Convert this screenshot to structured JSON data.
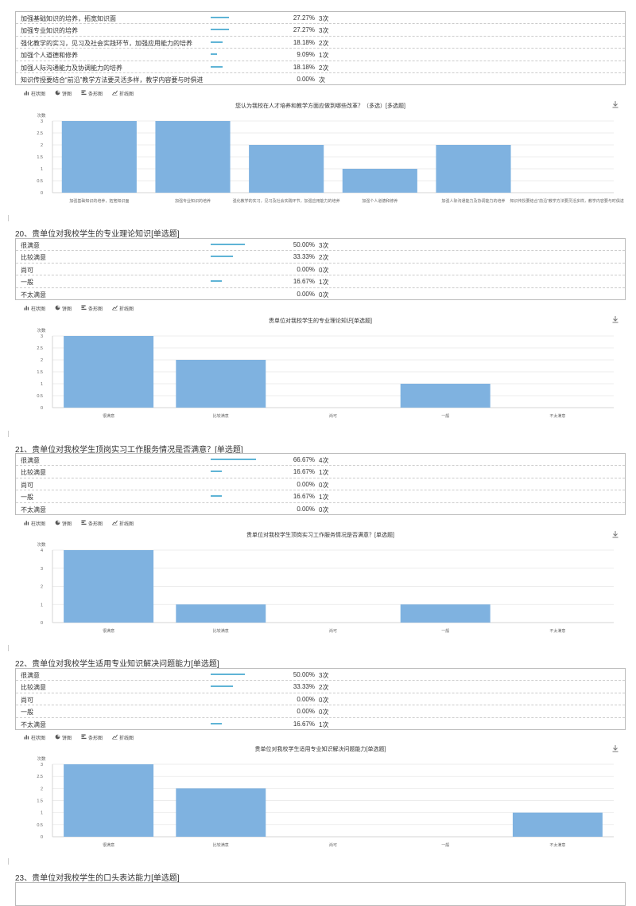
{
  "q19": {
    "rows": [
      {
        "label": "加强基础知识的培养，拓宽知识面",
        "pct": "27.27%",
        "cnt": "3次",
        "frac": 0.2727
      },
      {
        "label": "加强专业知识的培养",
        "pct": "27.27%",
        "cnt": "3次",
        "frac": 0.2727
      },
      {
        "label": "强化教学的实习，见习及社会实践环节，加强应用能力的培养",
        "pct": "18.18%",
        "cnt": "2次",
        "frac": 0.1818
      },
      {
        "label": "加强个人道德和修养",
        "pct": "9.09%",
        "cnt": "1次",
        "frac": 0.0909
      },
      {
        "label": "加强人际沟通能力及协调能力的培养",
        "pct": "18.18%",
        "cnt": "2次",
        "frac": 0.1818
      },
      {
        "label": "知识传授要结合“前沿”教学方法要灵活多样，教学内容要与时俱进",
        "pct": "0.00%",
        "cnt": "次",
        "frac": 0
      }
    ],
    "tabs": [
      "柱状图",
      "饼图",
      "条形图",
      "折线图"
    ],
    "chart": {
      "type": "bar",
      "title": "您认为我校在人才培养和教学方面应做到哪些改革？（多选）[多选题]",
      "ylabel": "次数",
      "categories": [
        "加强基础知识的培养，拓宽知识面",
        "加强专业知识的培养",
        "强化教学的实习，见习及社会实践环节，加强应用能力的培养",
        "加强个人道德和修养",
        "加强人际沟通能力及协调能力的培养",
        "知识传授要结合“前沿”教学方法要灵活多样，教学内容要与时俱进"
      ],
      "values": [
        3,
        3,
        2,
        1,
        2,
        0
      ],
      "yticks": [
        "0",
        "0.5",
        "1",
        "1.5",
        "2",
        "2.5",
        "3"
      ],
      "ymax": 3
    }
  },
  "q20": {
    "title": "20、贵单位对我校学生的专业理论知识[单选题]",
    "rows": [
      {
        "label": "很满意",
        "pct": "50.00%",
        "cnt": "3次",
        "frac": 0.5
      },
      {
        "label": "比较满意",
        "pct": "33.33%",
        "cnt": "2次",
        "frac": 0.3333
      },
      {
        "label": "尚可",
        "pct": "0.00%",
        "cnt": "0次",
        "frac": 0
      },
      {
        "label": "一般",
        "pct": "16.67%",
        "cnt": "1次",
        "frac": 0.1667
      },
      {
        "label": "不太满意",
        "pct": "0.00%",
        "cnt": "0次",
        "frac": 0
      }
    ],
    "tabs": [
      "柱状图",
      "饼图",
      "条形图",
      "折线图"
    ],
    "chart": {
      "type": "bar",
      "title": "贵单位对我校学生的专业理论知识[单选题]",
      "ylabel": "次数",
      "categories": [
        "很满意",
        "比较满意",
        "尚可",
        "一般",
        "不太满意"
      ],
      "values": [
        3,
        2,
        0,
        1,
        0
      ],
      "yticks": [
        "0",
        "0.5",
        "1",
        "1.5",
        "2",
        "2.5",
        "3"
      ],
      "ymax": 3
    }
  },
  "q21": {
    "title": "21、贵单位对我校学生顶岗实习工作服务情况是否满意？[单选题]",
    "rows": [
      {
        "label": "很满意",
        "pct": "66.67%",
        "cnt": "4次",
        "frac": 0.6667
      },
      {
        "label": "比较满意",
        "pct": "16.67%",
        "cnt": "1次",
        "frac": 0.1667
      },
      {
        "label": "尚可",
        "pct": "0.00%",
        "cnt": "0次",
        "frac": 0
      },
      {
        "label": "一般",
        "pct": "16.67%",
        "cnt": "1次",
        "frac": 0.1667
      },
      {
        "label": "不太满意",
        "pct": "0.00%",
        "cnt": "0次",
        "frac": 0
      }
    ],
    "tabs": [
      "柱状图",
      "饼图",
      "条形图",
      "折线图"
    ],
    "chart": {
      "type": "bar",
      "title": "贵单位对我校学生顶岗实习工作服务情况是否满意？[单选题]",
      "ylabel": "次数",
      "categories": [
        "很满意",
        "比较满意",
        "尚可",
        "一般",
        "不太满意"
      ],
      "values": [
        4,
        1,
        0,
        1,
        0
      ],
      "yticks": [
        "0",
        "1",
        "2",
        "3",
        "4"
      ],
      "ymax": 4
    }
  },
  "q22": {
    "title": "22、贵单位对我校学生适用专业知识解决问题能力[单选题]",
    "rows": [
      {
        "label": "很满意",
        "pct": "50.00%",
        "cnt": "3次",
        "frac": 0.5
      },
      {
        "label": "比较满意",
        "pct": "33.33%",
        "cnt": "2次",
        "frac": 0.3333
      },
      {
        "label": "尚可",
        "pct": "0.00%",
        "cnt": "0次",
        "frac": 0
      },
      {
        "label": "一般",
        "pct": "0.00%",
        "cnt": "0次",
        "frac": 0
      },
      {
        "label": "不太满意",
        "pct": "16.67%",
        "cnt": "1次",
        "frac": 0.1667
      }
    ],
    "tabs": [
      "柱状图",
      "饼图",
      "条形图",
      "折线图"
    ],
    "chart": {
      "type": "bar",
      "title": "贵单位对我校学生适用专业知识解决问题能力[单选题]",
      "ylabel": "次数",
      "categories": [
        "很满意",
        "比较满意",
        "尚可",
        "一般",
        "不太满意"
      ],
      "values": [
        3,
        2,
        0,
        0,
        1
      ],
      "yticks": [
        "0",
        "0.5",
        "1",
        "1.5",
        "2",
        "2.5",
        "3"
      ],
      "ymax": 3
    }
  },
  "q23": {
    "title": "23、贵单位对我校学生的口头表达能力[单选题]"
  },
  "colors": {
    "bar": "#7fb2e0",
    "pctbar": "#5fb4d6",
    "grid": "#e6e6e6"
  }
}
